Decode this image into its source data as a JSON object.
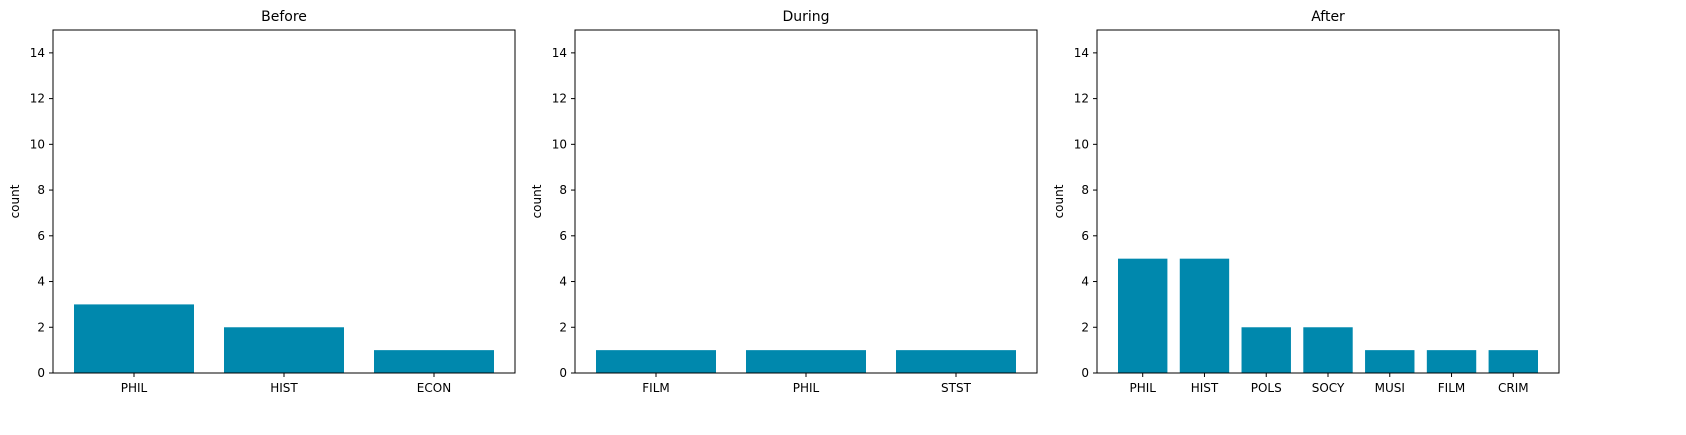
{
  "chart_data": [
    {
      "type": "bar",
      "title": "Before",
      "xlabel": "",
      "ylabel": "count",
      "ylim": [
        0,
        15
      ],
      "yticks": [
        0,
        2,
        4,
        6,
        8,
        10,
        12,
        14
      ],
      "categories": [
        "PHIL",
        "HIST",
        "ECON"
      ],
      "values": [
        3,
        2,
        1
      ],
      "grid": false,
      "bar_color": "#0088ad"
    },
    {
      "type": "bar",
      "title": "During",
      "xlabel": "",
      "ylabel": "count",
      "ylim": [
        0,
        15
      ],
      "yticks": [
        0,
        2,
        4,
        6,
        8,
        10,
        12,
        14
      ],
      "categories": [
        "FILM",
        "PHIL",
        "STST"
      ],
      "values": [
        1,
        1,
        1
      ],
      "grid": false,
      "bar_color": "#0088ad"
    },
    {
      "type": "bar",
      "title": "After",
      "xlabel": "",
      "ylabel": "count",
      "ylim": [
        0,
        15
      ],
      "yticks": [
        0,
        2,
        4,
        6,
        8,
        10,
        12,
        14
      ],
      "categories": [
        "PHIL",
        "HIST",
        "POLS",
        "SOCY",
        "MUSI",
        "FILM",
        "CRIM"
      ],
      "values": [
        5,
        5,
        2,
        2,
        1,
        1,
        1
      ],
      "grid": false,
      "bar_color": "#0088ad"
    }
  ]
}
